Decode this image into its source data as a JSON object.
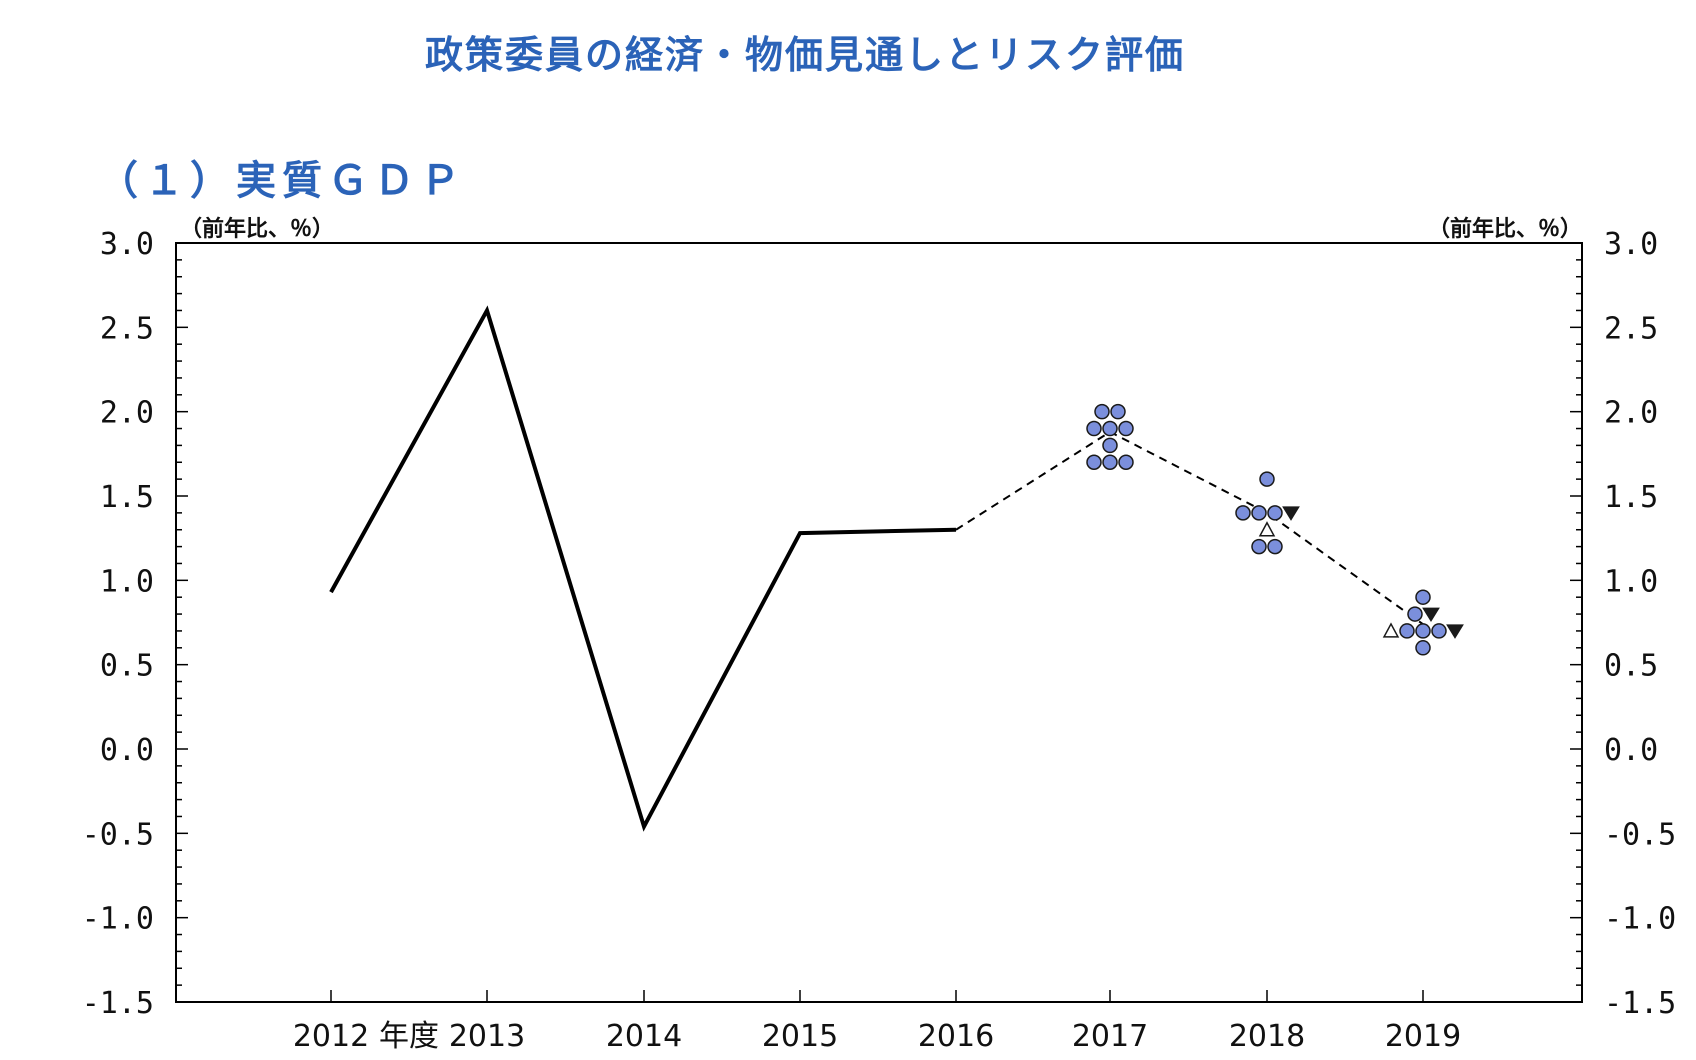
{
  "header": {
    "title": "政策委員の経済・物価見通しとリスク評価",
    "panel_title": "（１）実質ＧＤＰ"
  },
  "chart_data": {
    "type": "line",
    "title": "（１）実質ＧＤＰ",
    "unit_left": "（前年比、％）",
    "unit_right": "（前年比、％）",
    "xlabel": "年度",
    "ylabel": "（前年比、％）",
    "categories": [
      "2012",
      "2013",
      "2014",
      "2015",
      "2016",
      "2017",
      "2018",
      "2019"
    ],
    "ylim": [
      -1.5,
      3.0
    ],
    "yticks": [
      "3.0",
      "2.5",
      "2.0",
      "1.5",
      "1.0",
      "0.5",
      "0.0",
      "-0.5",
      "-1.0",
      "-1.5"
    ],
    "grid": false,
    "series": [
      {
        "style": "solid",
        "x": [
          "2012",
          "2013",
          "2014",
          "2015",
          "2016"
        ],
        "values": [
          0.93,
          2.6,
          -0.46,
          1.28,
          1.3
        ]
      },
      {
        "style": "dashed",
        "x": [
          "2016",
          "2017",
          "2018",
          "2019"
        ],
        "values": [
          1.3,
          1.88,
          1.4,
          0.74
        ]
      }
    ],
    "board_forecasts": [
      {
        "year": "2017",
        "points": [
          {
            "value": 2.0,
            "mark": "circle"
          },
          {
            "value": 2.0,
            "mark": "circle"
          },
          {
            "value": 1.9,
            "mark": "circle"
          },
          {
            "value": 1.9,
            "mark": "circle"
          },
          {
            "value": 1.9,
            "mark": "circle"
          },
          {
            "value": 1.8,
            "mark": "circle"
          },
          {
            "value": 1.7,
            "mark": "circle"
          },
          {
            "value": 1.7,
            "mark": "circle"
          },
          {
            "value": 1.7,
            "mark": "circle"
          }
        ]
      },
      {
        "year": "2018",
        "points": [
          {
            "value": 1.6,
            "mark": "circle"
          },
          {
            "value": 1.4,
            "mark": "circle"
          },
          {
            "value": 1.4,
            "mark": "circle"
          },
          {
            "value": 1.4,
            "mark": "circle"
          },
          {
            "value": 1.4,
            "mark": "triangle-down"
          },
          {
            "value": 1.3,
            "mark": "triangle-up"
          },
          {
            "value": 1.2,
            "mark": "circle"
          },
          {
            "value": 1.2,
            "mark": "circle"
          }
        ]
      },
      {
        "year": "2019",
        "points": [
          {
            "value": 0.9,
            "mark": "circle"
          },
          {
            "value": 0.8,
            "mark": "circle"
          },
          {
            "value": 0.8,
            "mark": "triangle-down"
          },
          {
            "value": 0.7,
            "mark": "triangle-up"
          },
          {
            "value": 0.7,
            "mark": "circle"
          },
          {
            "value": 0.7,
            "mark": "circle"
          },
          {
            "value": 0.7,
            "mark": "circle"
          },
          {
            "value": 0.7,
            "mark": "triangle-down"
          },
          {
            "value": 0.6,
            "mark": "circle"
          }
        ]
      }
    ],
    "colors": {
      "title": "#2b63b8",
      "circle_fill": "#7b8fdc",
      "circle_stroke": "#1a1a1a",
      "line": "#000000"
    }
  }
}
